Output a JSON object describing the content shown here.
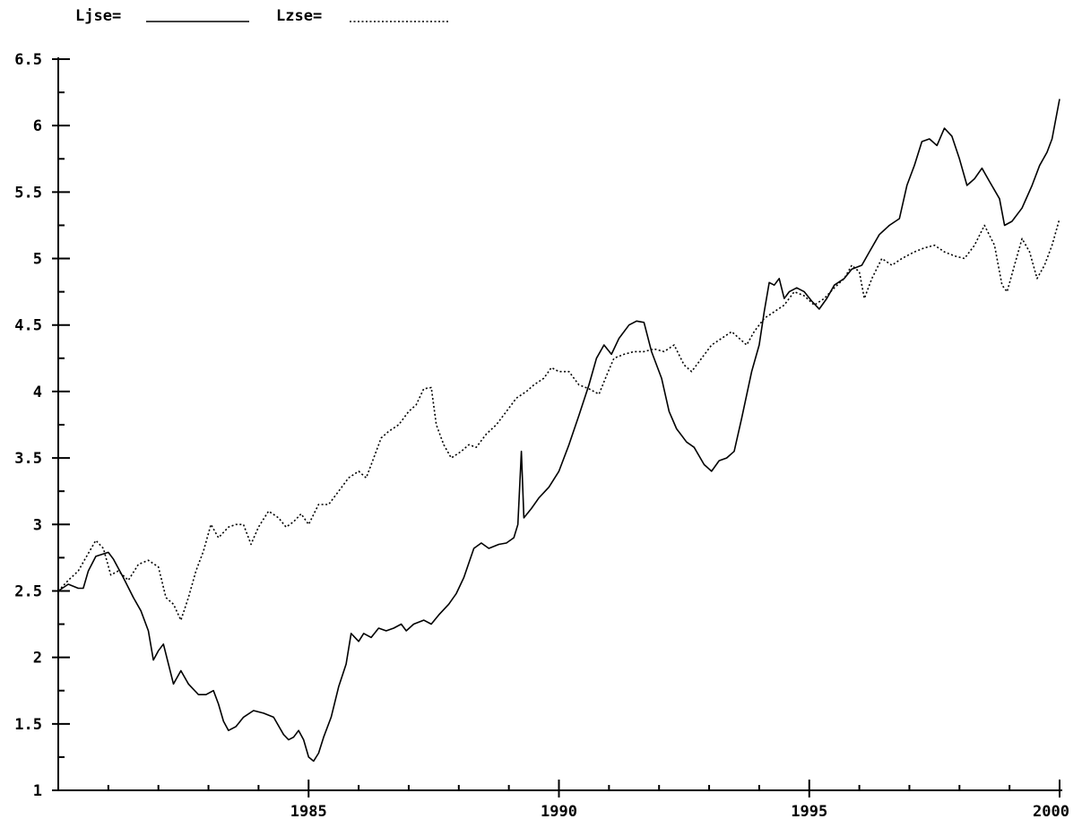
{
  "chart_data": {
    "type": "line",
    "title": "",
    "xlabel": "",
    "ylabel": "",
    "xlim": [
      1980.0,
      2000.0
    ],
    "ylim": [
      1,
      6.5
    ],
    "y_ticks": [
      "1",
      "1.5",
      "2",
      "2.5",
      "3",
      "3.5",
      "4",
      "4.5",
      "5",
      "5.5",
      "6",
      "6.5"
    ],
    "x_ticks": [
      "1985",
      "1990",
      "1995",
      "2000"
    ],
    "grid": false,
    "legend_placement": "top-left",
    "series": [
      {
        "name": "Ljse=",
        "style": "solid",
        "color": "#000000",
        "points": [
          [
            1980.0,
            2.5
          ],
          [
            1980.2,
            2.55
          ],
          [
            1980.4,
            2.52
          ],
          [
            1980.5,
            2.52
          ],
          [
            1980.6,
            2.65
          ],
          [
            1980.75,
            2.76
          ],
          [
            1981.0,
            2.79
          ],
          [
            1981.1,
            2.74
          ],
          [
            1981.3,
            2.6
          ],
          [
            1981.5,
            2.45
          ],
          [
            1981.65,
            2.35
          ],
          [
            1981.8,
            2.2
          ],
          [
            1981.9,
            1.98
          ],
          [
            1982.0,
            2.05
          ],
          [
            1982.1,
            2.1
          ],
          [
            1982.2,
            1.95
          ],
          [
            1982.3,
            1.8
          ],
          [
            1982.45,
            1.9
          ],
          [
            1982.6,
            1.8
          ],
          [
            1982.8,
            1.72
          ],
          [
            1982.95,
            1.72
          ],
          [
            1983.1,
            1.75
          ],
          [
            1983.2,
            1.65
          ],
          [
            1983.3,
            1.52
          ],
          [
            1983.4,
            1.45
          ],
          [
            1983.55,
            1.48
          ],
          [
            1983.7,
            1.55
          ],
          [
            1983.9,
            1.6
          ],
          [
            1984.1,
            1.58
          ],
          [
            1984.3,
            1.55
          ],
          [
            1984.5,
            1.42
          ],
          [
            1984.6,
            1.38
          ],
          [
            1984.7,
            1.4
          ],
          [
            1984.8,
            1.45
          ],
          [
            1984.9,
            1.38
          ],
          [
            1985.0,
            1.25
          ],
          [
            1985.1,
            1.22
          ],
          [
            1985.2,
            1.28
          ],
          [
            1985.3,
            1.4
          ],
          [
            1985.45,
            1.55
          ],
          [
            1985.6,
            1.78
          ],
          [
            1985.75,
            1.95
          ],
          [
            1985.85,
            2.18
          ],
          [
            1986.0,
            2.12
          ],
          [
            1986.1,
            2.18
          ],
          [
            1986.25,
            2.15
          ],
          [
            1986.4,
            2.22
          ],
          [
            1986.55,
            2.2
          ],
          [
            1986.7,
            2.22
          ],
          [
            1986.85,
            2.25
          ],
          [
            1986.95,
            2.2
          ],
          [
            1987.1,
            2.25
          ],
          [
            1987.3,
            2.28
          ],
          [
            1987.45,
            2.25
          ],
          [
            1987.6,
            2.32
          ],
          [
            1987.8,
            2.4
          ],
          [
            1987.95,
            2.48
          ],
          [
            1988.1,
            2.6
          ],
          [
            1988.3,
            2.82
          ],
          [
            1988.45,
            2.86
          ],
          [
            1988.6,
            2.82
          ],
          [
            1988.8,
            2.85
          ],
          [
            1988.95,
            2.86
          ],
          [
            1989.1,
            2.9
          ],
          [
            1989.18,
            3.0
          ],
          [
            1989.25,
            3.55
          ],
          [
            1989.3,
            3.05
          ],
          [
            1989.45,
            3.12
          ],
          [
            1989.6,
            3.2
          ],
          [
            1989.8,
            3.28
          ],
          [
            1990.0,
            3.4
          ],
          [
            1990.2,
            3.6
          ],
          [
            1990.4,
            3.82
          ],
          [
            1990.6,
            4.05
          ],
          [
            1990.75,
            4.25
          ],
          [
            1990.9,
            4.35
          ],
          [
            1991.05,
            4.28
          ],
          [
            1991.2,
            4.4
          ],
          [
            1991.4,
            4.5
          ],
          [
            1991.55,
            4.53
          ],
          [
            1991.7,
            4.52
          ],
          [
            1991.85,
            4.3
          ],
          [
            1992.05,
            4.1
          ],
          [
            1992.2,
            3.85
          ],
          [
            1992.35,
            3.72
          ],
          [
            1992.55,
            3.62
          ],
          [
            1992.7,
            3.58
          ],
          [
            1992.9,
            3.45
          ],
          [
            1993.05,
            3.4
          ],
          [
            1993.2,
            3.48
          ],
          [
            1993.35,
            3.5
          ],
          [
            1993.5,
            3.55
          ],
          [
            1993.65,
            3.8
          ],
          [
            1993.85,
            4.15
          ],
          [
            1994.0,
            4.35
          ],
          [
            1994.1,
            4.6
          ],
          [
            1994.2,
            4.82
          ],
          [
            1994.3,
            4.8
          ],
          [
            1994.4,
            4.85
          ],
          [
            1994.5,
            4.7
          ],
          [
            1994.6,
            4.75
          ],
          [
            1994.75,
            4.78
          ],
          [
            1994.9,
            4.75
          ],
          [
            1995.05,
            4.68
          ],
          [
            1995.2,
            4.62
          ],
          [
            1995.35,
            4.7
          ],
          [
            1995.5,
            4.8
          ],
          [
            1995.7,
            4.85
          ],
          [
            1995.85,
            4.92
          ],
          [
            1996.05,
            4.95
          ],
          [
            1996.2,
            5.05
          ],
          [
            1996.4,
            5.18
          ],
          [
            1996.6,
            5.25
          ],
          [
            1996.8,
            5.3
          ],
          [
            1996.95,
            5.55
          ],
          [
            1997.1,
            5.7
          ],
          [
            1997.25,
            5.88
          ],
          [
            1997.4,
            5.9
          ],
          [
            1997.55,
            5.85
          ],
          [
            1997.7,
            5.98
          ],
          [
            1997.85,
            5.92
          ],
          [
            1998.0,
            5.75
          ],
          [
            1998.15,
            5.55
          ],
          [
            1998.3,
            5.6
          ],
          [
            1998.45,
            5.68
          ],
          [
            1998.6,
            5.58
          ],
          [
            1998.8,
            5.45
          ],
          [
            1998.9,
            5.25
          ],
          [
            1999.05,
            5.28
          ],
          [
            1999.25,
            5.38
          ],
          [
            1999.45,
            5.55
          ],
          [
            1999.6,
            5.7
          ],
          [
            1999.75,
            5.8
          ],
          [
            1999.85,
            5.9
          ],
          [
            2000.0,
            6.2
          ]
        ]
      },
      {
        "name": "Lzse=",
        "style": "dotted",
        "color": "#000000",
        "points": [
          [
            1980.0,
            2.5
          ],
          [
            1980.2,
            2.58
          ],
          [
            1980.4,
            2.65
          ],
          [
            1980.55,
            2.75
          ],
          [
            1980.75,
            2.88
          ],
          [
            1980.9,
            2.82
          ],
          [
            1981.05,
            2.62
          ],
          [
            1981.2,
            2.65
          ],
          [
            1981.4,
            2.58
          ],
          [
            1981.6,
            2.7
          ],
          [
            1981.8,
            2.73
          ],
          [
            1982.0,
            2.68
          ],
          [
            1982.15,
            2.45
          ],
          [
            1982.3,
            2.4
          ],
          [
            1982.45,
            2.28
          ],
          [
            1982.6,
            2.45
          ],
          [
            1982.75,
            2.65
          ],
          [
            1982.9,
            2.8
          ],
          [
            1983.05,
            3.0
          ],
          [
            1983.2,
            2.9
          ],
          [
            1983.4,
            2.98
          ],
          [
            1983.55,
            3.0
          ],
          [
            1983.7,
            3.0
          ],
          [
            1983.85,
            2.85
          ],
          [
            1984.0,
            2.98
          ],
          [
            1984.2,
            3.1
          ],
          [
            1984.4,
            3.05
          ],
          [
            1984.55,
            2.98
          ],
          [
            1984.7,
            3.02
          ],
          [
            1984.85,
            3.08
          ],
          [
            1985.0,
            3.0
          ],
          [
            1985.2,
            3.15
          ],
          [
            1985.4,
            3.15
          ],
          [
            1985.6,
            3.25
          ],
          [
            1985.8,
            3.35
          ],
          [
            1986.0,
            3.4
          ],
          [
            1986.15,
            3.35
          ],
          [
            1986.3,
            3.5
          ],
          [
            1986.45,
            3.65
          ],
          [
            1986.6,
            3.7
          ],
          [
            1986.8,
            3.75
          ],
          [
            1987.0,
            3.85
          ],
          [
            1987.15,
            3.9
          ],
          [
            1987.3,
            4.02
          ],
          [
            1987.45,
            4.03
          ],
          [
            1987.55,
            3.75
          ],
          [
            1987.7,
            3.6
          ],
          [
            1987.85,
            3.5
          ],
          [
            1988.05,
            3.55
          ],
          [
            1988.2,
            3.6
          ],
          [
            1988.35,
            3.58
          ],
          [
            1988.55,
            3.68
          ],
          [
            1988.75,
            3.75
          ],
          [
            1988.95,
            3.85
          ],
          [
            1989.15,
            3.95
          ],
          [
            1989.35,
            4.0
          ],
          [
            1989.5,
            4.05
          ],
          [
            1989.7,
            4.1
          ],
          [
            1989.85,
            4.18
          ],
          [
            1990.0,
            4.15
          ],
          [
            1990.2,
            4.15
          ],
          [
            1990.4,
            4.05
          ],
          [
            1990.6,
            4.02
          ],
          [
            1990.8,
            3.98
          ],
          [
            1990.95,
            4.12
          ],
          [
            1991.1,
            4.25
          ],
          [
            1991.3,
            4.28
          ],
          [
            1991.5,
            4.3
          ],
          [
            1991.7,
            4.3
          ],
          [
            1991.9,
            4.32
          ],
          [
            1992.1,
            4.3
          ],
          [
            1992.3,
            4.35
          ],
          [
            1992.5,
            4.2
          ],
          [
            1992.65,
            4.15
          ],
          [
            1992.85,
            4.25
          ],
          [
            1993.05,
            4.35
          ],
          [
            1993.25,
            4.4
          ],
          [
            1993.45,
            4.45
          ],
          [
            1993.6,
            4.4
          ],
          [
            1993.75,
            4.35
          ],
          [
            1993.9,
            4.45
          ],
          [
            1994.1,
            4.55
          ],
          [
            1994.3,
            4.6
          ],
          [
            1994.5,
            4.65
          ],
          [
            1994.7,
            4.75
          ],
          [
            1994.9,
            4.72
          ],
          [
            1995.1,
            4.65
          ],
          [
            1995.3,
            4.7
          ],
          [
            1995.5,
            4.78
          ],
          [
            1995.7,
            4.85
          ],
          [
            1995.85,
            4.95
          ],
          [
            1996.0,
            4.9
          ],
          [
            1996.1,
            4.7
          ],
          [
            1996.25,
            4.85
          ],
          [
            1996.45,
            5.0
          ],
          [
            1996.65,
            4.95
          ],
          [
            1996.85,
            5.0
          ],
          [
            1997.1,
            5.05
          ],
          [
            1997.3,
            5.08
          ],
          [
            1997.5,
            5.1
          ],
          [
            1997.7,
            5.05
          ],
          [
            1997.9,
            5.02
          ],
          [
            1998.1,
            5.0
          ],
          [
            1998.3,
            5.1
          ],
          [
            1998.5,
            5.25
          ],
          [
            1998.7,
            5.1
          ],
          [
            1998.85,
            4.8
          ],
          [
            1998.95,
            4.75
          ],
          [
            1999.1,
            4.95
          ],
          [
            1999.25,
            5.15
          ],
          [
            1999.4,
            5.05
          ],
          [
            1999.55,
            4.85
          ],
          [
            1999.7,
            4.95
          ],
          [
            1999.85,
            5.1
          ],
          [
            2000.0,
            5.3
          ]
        ]
      }
    ]
  }
}
